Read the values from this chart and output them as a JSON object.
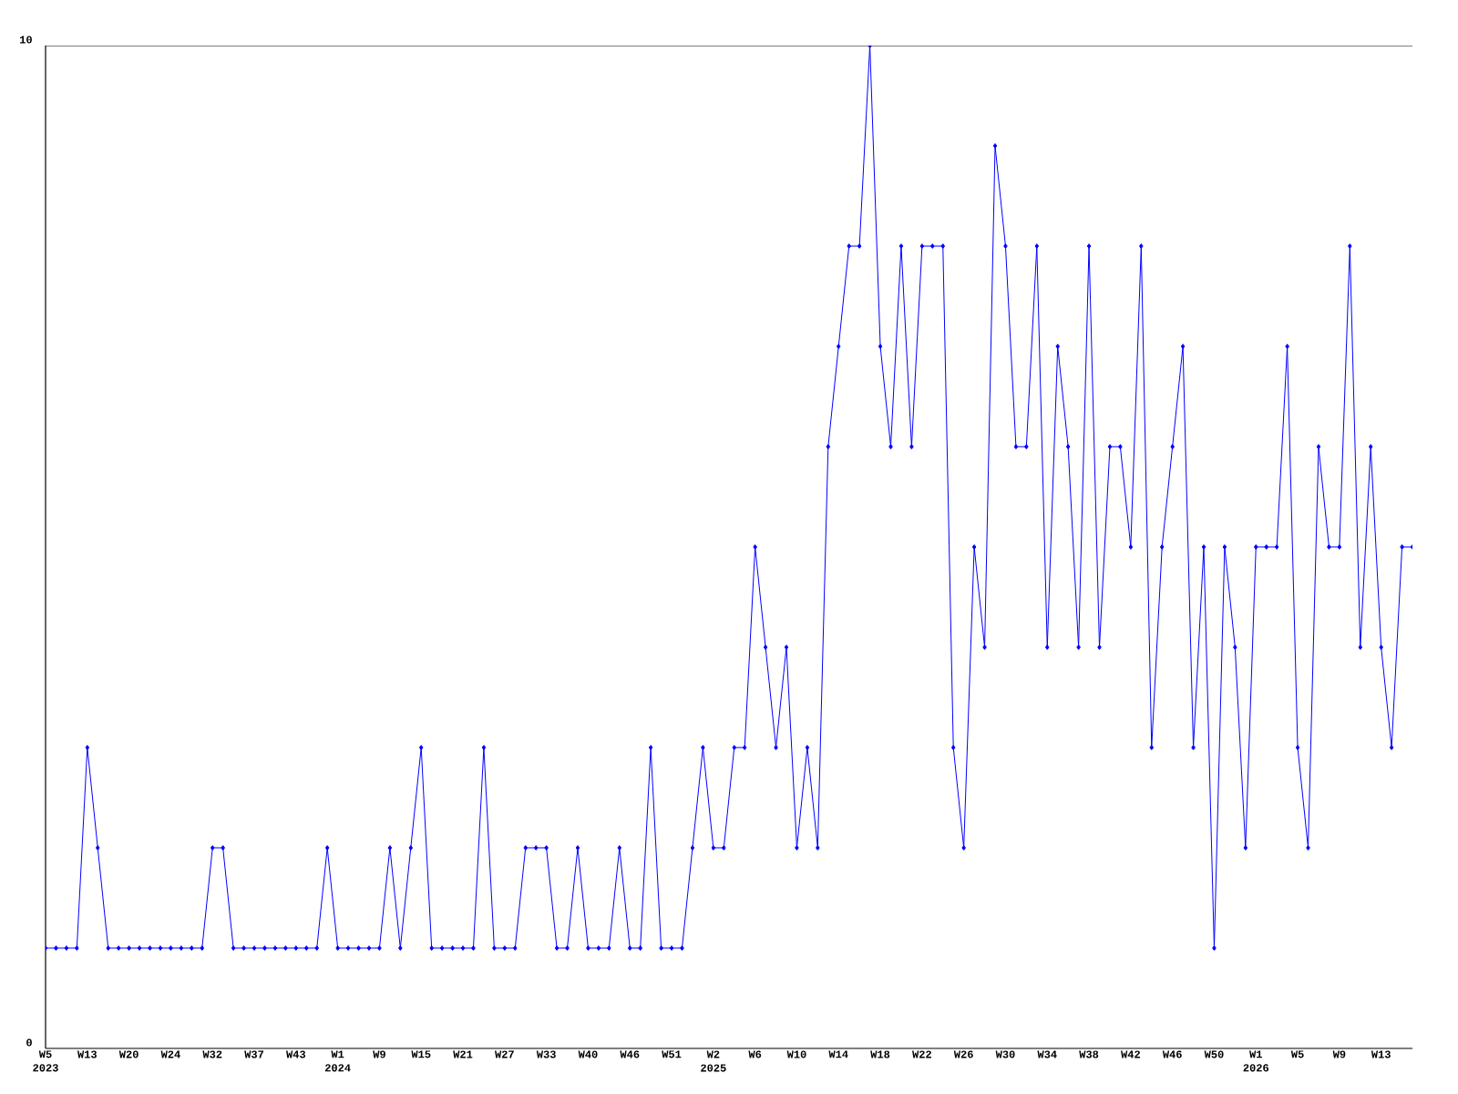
{
  "chart_data": {
    "type": "line",
    "categories": [
      "W5 2023",
      null,
      null,
      null,
      "W13",
      null,
      null,
      null,
      "W20",
      null,
      null,
      null,
      "W24",
      null,
      null,
      null,
      "W32",
      null,
      null,
      null,
      "W37",
      null,
      null,
      null,
      "W43",
      null,
      null,
      null,
      "W1 2024",
      null,
      null,
      null,
      "W9",
      null,
      null,
      null,
      "W15",
      null,
      null,
      null,
      "W21",
      null,
      null,
      null,
      "W27",
      null,
      null,
      null,
      "W33",
      null,
      null,
      null,
      "W40",
      null,
      null,
      null,
      "W46",
      null,
      null,
      null,
      "W51",
      null,
      null,
      null,
      "W2 2025",
      null,
      null,
      null,
      "W6",
      null,
      null,
      null,
      "W10",
      null,
      null,
      null,
      "W14",
      null,
      null,
      null,
      "W18",
      null,
      null,
      null,
      "W22",
      null,
      null,
      null,
      "W26",
      null,
      null,
      null,
      "W30",
      null,
      null,
      null,
      "W34",
      null,
      null,
      null,
      "W38",
      null,
      null,
      null,
      "W42",
      null,
      null,
      null,
      "W46",
      null,
      null,
      null,
      "W50",
      null,
      null,
      null,
      "W1 2026",
      null,
      null,
      null,
      "W5",
      null,
      null,
      null,
      "W9",
      null,
      null,
      null,
      "W13",
      null,
      null,
      null
    ],
    "values": [
      1,
      1,
      1,
      1,
      3,
      2,
      1,
      1,
      1,
      1,
      1,
      1,
      1,
      1,
      1,
      1,
      2,
      2,
      1,
      1,
      1,
      1,
      1,
      1,
      1,
      1,
      1,
      2,
      1,
      1,
      1,
      1,
      1,
      2,
      1,
      2,
      3,
      1,
      1,
      1,
      1,
      1,
      3,
      1,
      1,
      1,
      2,
      2,
      2,
      1,
      1,
      2,
      1,
      1,
      1,
      2,
      1,
      1,
      3,
      1,
      1,
      1,
      2,
      3,
      2,
      2,
      3,
      3,
      5,
      4,
      3,
      4,
      2,
      3,
      2,
      6,
      7,
      8,
      8,
      10,
      7,
      6,
      8,
      6,
      8,
      8,
      8,
      3,
      2,
      5,
      4,
      9,
      8,
      6,
      6,
      8,
      4,
      7,
      6,
      4,
      8,
      4,
      6,
      6,
      5,
      8,
      3,
      5,
      6,
      7,
      3,
      5,
      1,
      5,
      4,
      2,
      5,
      5,
      5,
      7,
      3,
      2,
      6,
      5,
      5,
      8,
      4,
      6,
      4,
      3,
      5,
      5
    ],
    "color": "#0000ff",
    "marker": "diamond",
    "line_style": "solid",
    "ylim": [
      0,
      10
    ],
    "yticks": [
      0,
      10
    ]
  }
}
